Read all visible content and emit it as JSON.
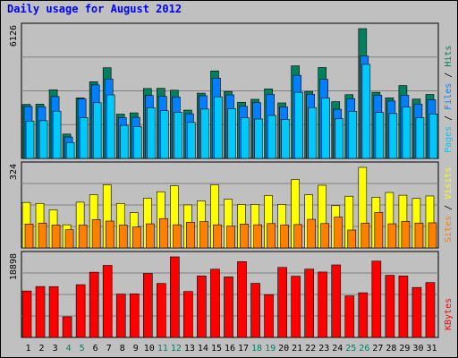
{
  "chart_data": [
    {
      "type": "bar",
      "title": "Daily usage for August 2012",
      "x": [
        "1",
        "2",
        "3",
        "4",
        "5",
        "6",
        "7",
        "8",
        "9",
        "10",
        "11",
        "12",
        "13",
        "14",
        "15",
        "16",
        "17",
        "18",
        "19",
        "20",
        "21",
        "22",
        "23",
        "24",
        "25",
        "26",
        "27",
        "28",
        "29",
        "30",
        "31"
      ],
      "weekend_days": [
        "4",
        "5",
        "11",
        "12",
        "18",
        "19",
        "25",
        "26"
      ],
      "ymax_label": "6126",
      "ylim": [
        0,
        6126
      ],
      "series": [
        {
          "name": "Hits",
          "color": "#00805c",
          "values": [
            2550,
            2560,
            3240,
            1150,
            2860,
            3620,
            4280,
            2090,
            2150,
            3300,
            3310,
            3220,
            2280,
            3080,
            4130,
            3160,
            2650,
            2790,
            3280,
            2620,
            4370,
            3160,
            4290,
            2680,
            3010,
            6126,
            3120,
            2860,
            3440,
            2800,
            3020
          ]
        },
        {
          "name": "Files",
          "color": "#0080ff",
          "values": [
            2450,
            2430,
            2920,
            1010,
            2810,
            3470,
            3750,
            1930,
            1940,
            2970,
            2930,
            2900,
            2110,
            2960,
            3790,
            3000,
            2460,
            2630,
            3020,
            2430,
            3920,
            3030,
            3730,
            2320,
            2820,
            4830,
            2980,
            2710,
            2980,
            2560,
            2770
          ]
        },
        {
          "name": "Pages",
          "color": "#00c8f8",
          "values": [
            1760,
            1780,
            2230,
            750,
            1930,
            2630,
            3000,
            1560,
            1500,
            2390,
            2250,
            2180,
            1700,
            2330,
            2910,
            2350,
            1920,
            1860,
            2030,
            1840,
            3120,
            2400,
            2850,
            1870,
            2220,
            4440,
            2170,
            2120,
            2420,
            1920,
            2100
          ]
        }
      ],
      "axis_title_parts": [
        {
          "text": "Pages",
          "color": "#00c8f8"
        },
        {
          "text": " / ",
          "color": "#000000"
        },
        {
          "text": "Files",
          "color": "#0080ff"
        },
        {
          "text": " / ",
          "color": "#000000"
        },
        {
          "text": "Hits",
          "color": "#00805c"
        }
      ]
    },
    {
      "type": "bar",
      "ymax_label": "324",
      "ylim": [
        0,
        324
      ],
      "series": [
        {
          "name": "Visits",
          "color": "#ffff00",
          "values": [
            183,
            179,
            153,
            93,
            184,
            214,
            254,
            179,
            142,
            200,
            226,
            250,
            173,
            189,
            254,
            196,
            175,
            175,
            211,
            175,
            275,
            214,
            252,
            170,
            208,
            324,
            204,
            223,
            212,
            199,
            209
          ]
        },
        {
          "name": "Sites",
          "color": "#ff8000",
          "values": [
            96,
            100,
            92,
            73,
            92,
            114,
            108,
            92,
            84,
            97,
            118,
            93,
            103,
            106,
            93,
            88,
            96,
            93,
            98,
            92,
            94,
            115,
            98,
            124,
            72,
            100,
            143,
            97,
            107,
            100,
            101
          ]
        }
      ],
      "axis_title_parts": [
        {
          "text": "Sites",
          "color": "#ff8000"
        },
        {
          "text": " / ",
          "color": "#000000"
        },
        {
          "text": "Visits",
          "color": "#ffff00"
        }
      ]
    },
    {
      "type": "bar",
      "ymax_label": "18898",
      "ylim": [
        0,
        18898
      ],
      "series": [
        {
          "name": "KBytes",
          "color": "#ff0000",
          "values": [
            10890,
            11940,
            11920,
            4840,
            12370,
            15300,
            16900,
            10170,
            10230,
            15000,
            12660,
            18898,
            10770,
            14430,
            16000,
            14200,
            17770,
            12690,
            10040,
            16420,
            14350,
            16020,
            15340,
            17010,
            9740,
            10470,
            17900,
            14570,
            14420,
            11720,
            12880
          ]
        }
      ],
      "axis_title_parts": [
        {
          "text": "KBytes",
          "color": "#ff0000"
        }
      ]
    }
  ]
}
